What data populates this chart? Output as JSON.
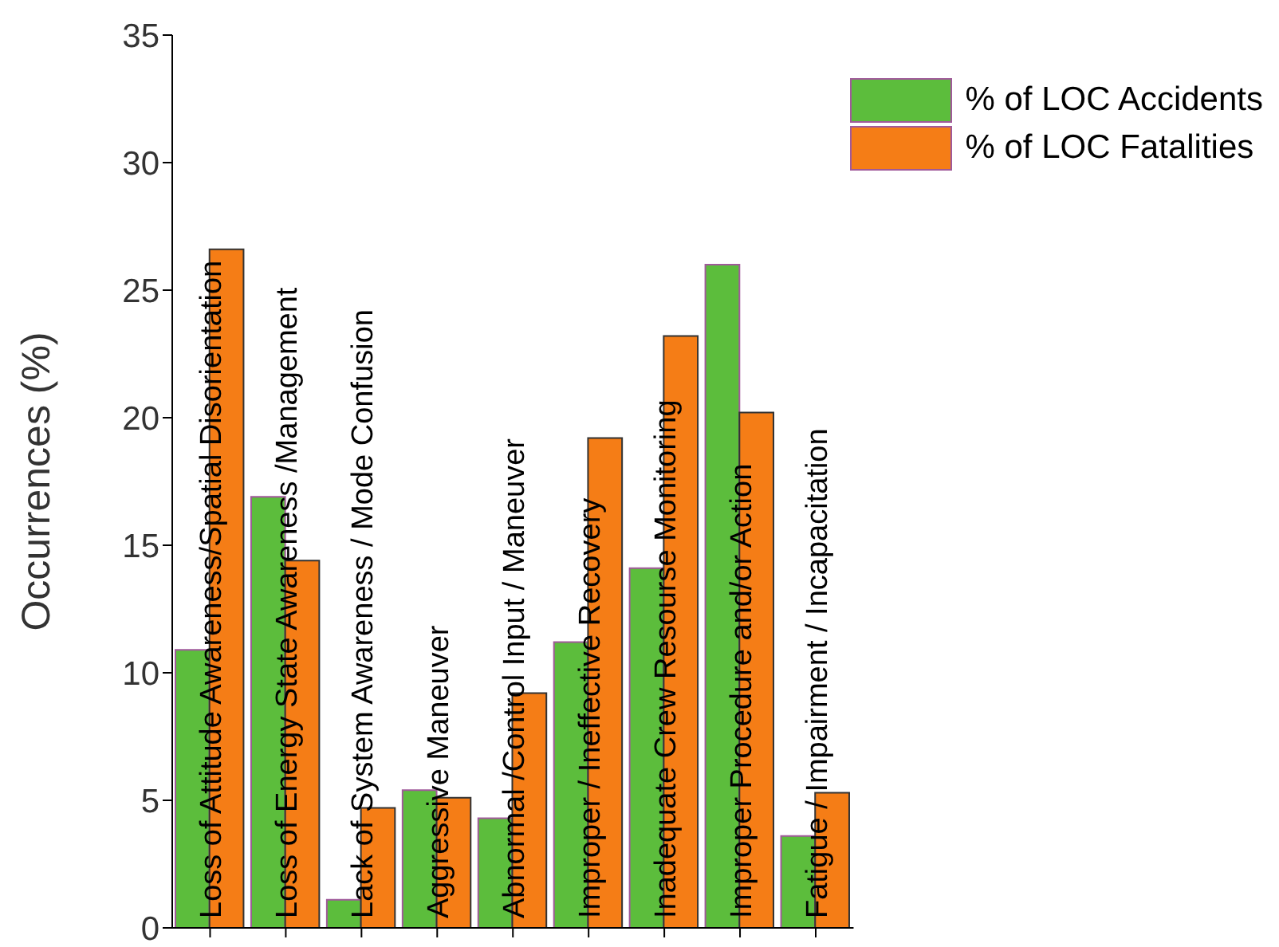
{
  "chart_data": {
    "type": "bar",
    "ylabel": "Occurrences (%)",
    "categories": [
      "Loss of Attitude Awareness/Spatial Disorientation",
      "Loss of Energy State Awareness /Management",
      "Lack of System Awareness / Mode Confusion",
      "Aggressive Maneuver",
      "Abnormal /Control Input / Maneuver",
      "Improper / Ineffective Recovery",
      "Inadequate Crew Resourse Monitoring",
      "Improper  Procedure and/or Action",
      "Fatigue / Impairment / Incapacitation"
    ],
    "series": [
      {
        "name": "% of LOC Accidents",
        "color": "#5cbd3c",
        "values": [
          10.9,
          16.9,
          1.1,
          5.4,
          4.3,
          11.2,
          14.1,
          26.0,
          3.6
        ]
      },
      {
        "name": "% of LOC Fatalities",
        "color": "#f57d16",
        "values": [
          26.6,
          14.4,
          4.7,
          5.1,
          9.2,
          19.2,
          23.2,
          20.2,
          5.3
        ]
      }
    ],
    "ylim": [
      0,
      35
    ],
    "yticks": [
      0,
      5,
      10,
      15,
      20,
      25,
      30,
      35
    ],
    "grid": false,
    "legend": "top right"
  }
}
